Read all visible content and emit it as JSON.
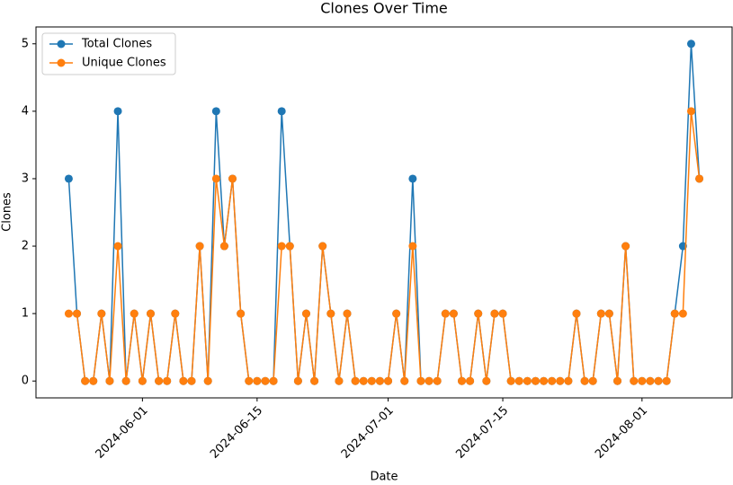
{
  "chart_data": {
    "type": "line",
    "title": "Clones Over Time",
    "xlabel": "Date",
    "ylabel": "Clones",
    "x": [
      "2024-05-23",
      "2024-05-24",
      "2024-05-25",
      "2024-05-26",
      "2024-05-27",
      "2024-05-28",
      "2024-05-29",
      "2024-05-30",
      "2024-05-31",
      "2024-06-01",
      "2024-06-02",
      "2024-06-03",
      "2024-06-04",
      "2024-06-05",
      "2024-06-06",
      "2024-06-07",
      "2024-06-08",
      "2024-06-09",
      "2024-06-10",
      "2024-06-11",
      "2024-06-12",
      "2024-06-13",
      "2024-06-14",
      "2024-06-15",
      "2024-06-16",
      "2024-06-17",
      "2024-06-18",
      "2024-06-19",
      "2024-06-20",
      "2024-06-21",
      "2024-06-22",
      "2024-06-23",
      "2024-06-24",
      "2024-06-25",
      "2024-06-26",
      "2024-06-27",
      "2024-06-28",
      "2024-06-29",
      "2024-06-30",
      "2024-07-01",
      "2024-07-02",
      "2024-07-03",
      "2024-07-04",
      "2024-07-05",
      "2024-07-06",
      "2024-07-07",
      "2024-07-08",
      "2024-07-09",
      "2024-07-10",
      "2024-07-11",
      "2024-07-12",
      "2024-07-13",
      "2024-07-14",
      "2024-07-15",
      "2024-07-16",
      "2024-07-17",
      "2024-07-18",
      "2024-07-19",
      "2024-07-20",
      "2024-07-21",
      "2024-07-22",
      "2024-07-23",
      "2024-07-24",
      "2024-07-25",
      "2024-07-26",
      "2024-07-27",
      "2024-07-28",
      "2024-07-29",
      "2024-07-30",
      "2024-07-31",
      "2024-08-01",
      "2024-08-02",
      "2024-08-03",
      "2024-08-04",
      "2024-08-05",
      "2024-08-06",
      "2024-08-07",
      "2024-08-08"
    ],
    "series": [
      {
        "name": "Total Clones",
        "color": "#1f77b4",
        "values": [
          3,
          1,
          0,
          0,
          1,
          0,
          4,
          0,
          1,
          0,
          1,
          0,
          0,
          1,
          0,
          0,
          2,
          0,
          4,
          2,
          3,
          1,
          0,
          0,
          0,
          0,
          4,
          2,
          0,
          1,
          0,
          2,
          1,
          0,
          1,
          0,
          0,
          0,
          0,
          0,
          1,
          0,
          3,
          0,
          0,
          0,
          1,
          1,
          0,
          0,
          1,
          0,
          1,
          1,
          0,
          0,
          0,
          0,
          0,
          0,
          0,
          0,
          1,
          0,
          0,
          1,
          1,
          0,
          2,
          0,
          0,
          0,
          0,
          0,
          1,
          2,
          5,
          3
        ]
      },
      {
        "name": "Unique Clones",
        "color": "#ff7f0e",
        "values": [
          1,
          1,
          0,
          0,
          1,
          0,
          2,
          0,
          1,
          0,
          1,
          0,
          0,
          1,
          0,
          0,
          2,
          0,
          3,
          2,
          3,
          1,
          0,
          0,
          0,
          0,
          2,
          2,
          0,
          1,
          0,
          2,
          1,
          0,
          1,
          0,
          0,
          0,
          0,
          0,
          1,
          0,
          2,
          0,
          0,
          0,
          1,
          1,
          0,
          0,
          1,
          0,
          1,
          1,
          0,
          0,
          0,
          0,
          0,
          0,
          0,
          0,
          1,
          0,
          0,
          1,
          1,
          0,
          2,
          0,
          0,
          0,
          0,
          0,
          1,
          1,
          4,
          3
        ]
      }
    ],
    "xlim": [
      "2024-05-19",
      "2024-08-12"
    ],
    "xticks": [
      "2024-06-01",
      "2024-06-15",
      "2024-07-01",
      "2024-07-15",
      "2024-08-01"
    ],
    "ylim": [
      -0.25,
      5.25
    ],
    "yticks": [
      0,
      1,
      2,
      3,
      4,
      5
    ],
    "grid": false,
    "legend": "upper left"
  }
}
